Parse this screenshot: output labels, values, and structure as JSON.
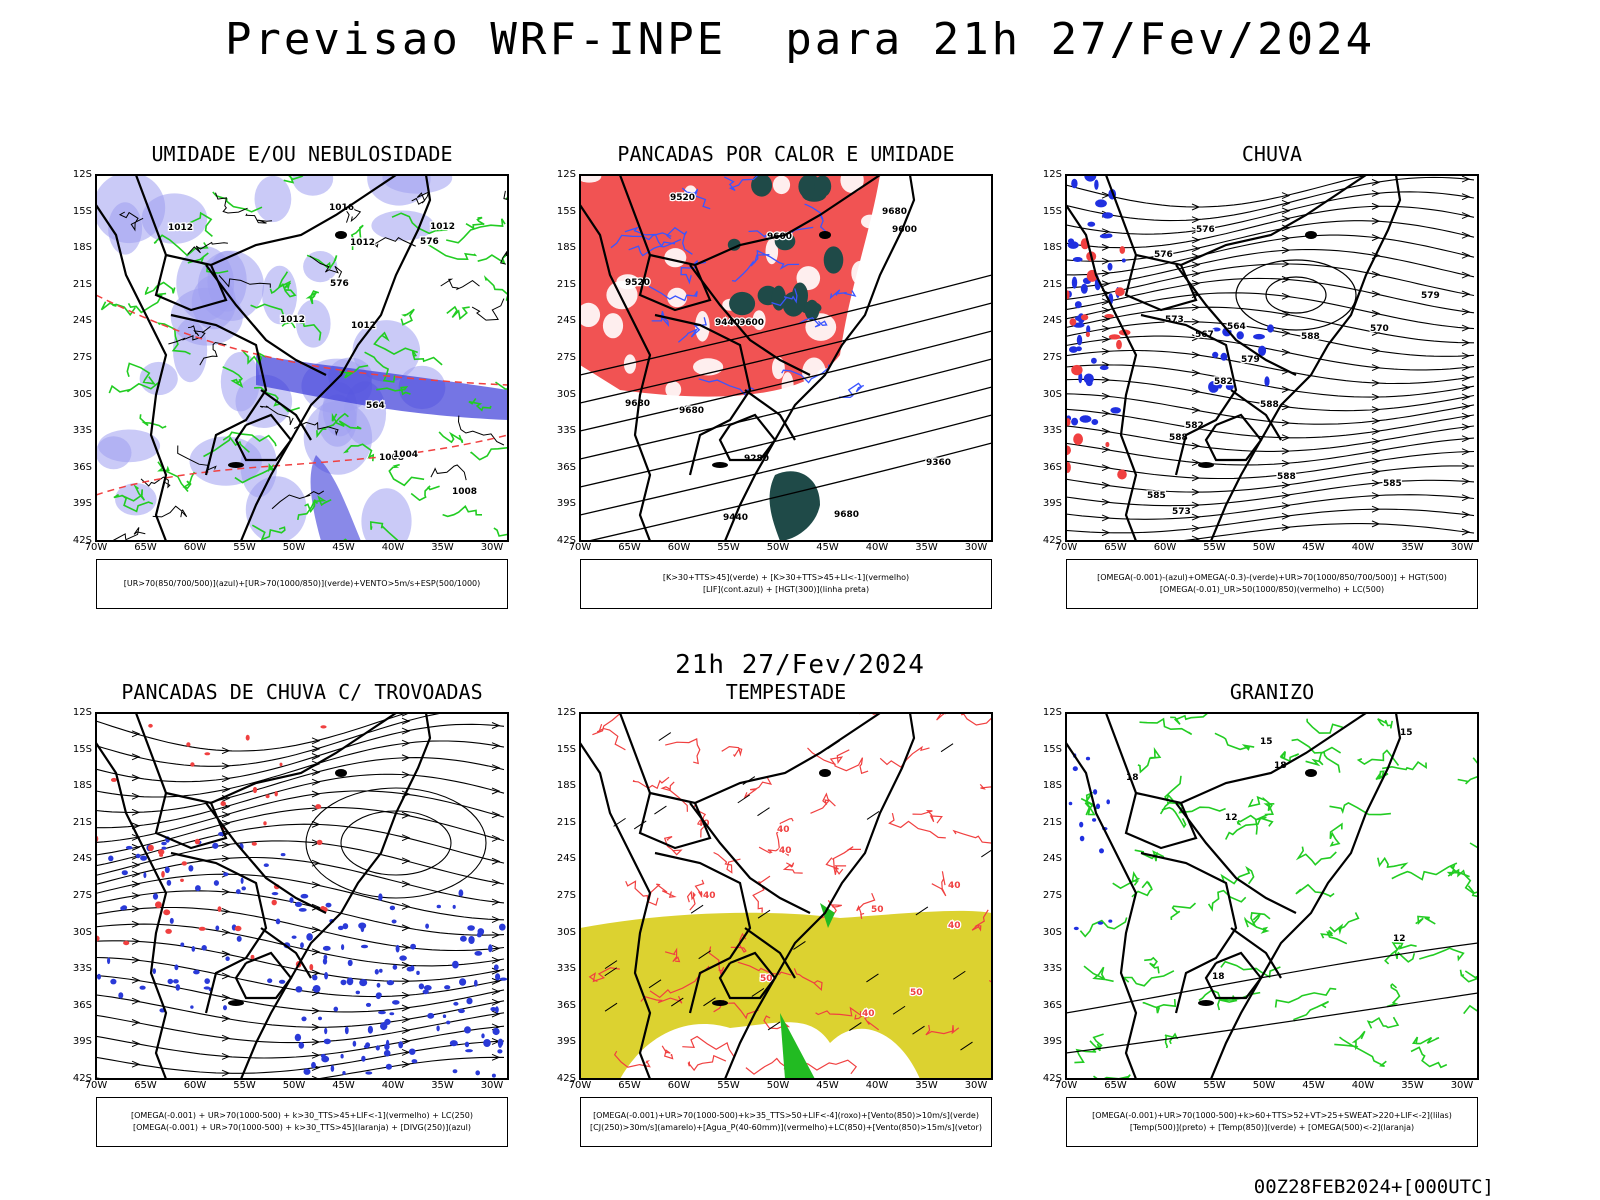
{
  "title": "Previsao WRF-INPE  para 21h 27/Fev/2024",
  "subtitle": "21h 27/Fev/2024",
  "footer": "00Z28FEB2024+[000UTC]",
  "latitude_ticks": [
    "12S",
    "15S",
    "18S",
    "21S",
    "24S",
    "27S",
    "30S",
    "33S",
    "36S",
    "39S",
    "42S"
  ],
  "longitude_ticks": [
    "70W",
    "65W",
    "60W",
    "55W",
    "50W",
    "45W",
    "40W",
    "35W",
    "30W"
  ],
  "colors": {
    "blue_humidity": "#9e9ef0",
    "deep_blue": "#3a3ad8",
    "green_contour": "#22cc22",
    "red": "#f04040",
    "dark_teal": "#1f4a48",
    "yellow": "#dcd230",
    "blue_dots": "#2a3ad8"
  },
  "panels": [
    {
      "title": "UMIDADE E/OU NEBULOSIDADE",
      "legend": [
        "[UR>70(850/700/500)](azul)+[UR>70(1000/850)](verde)+VENTO>5m/s+ESP(500/1000)"
      ],
      "contour_labels": [
        "1012",
        "1012",
        "1012",
        "1008",
        "1012",
        "1016",
        "1012",
        "1008",
        "576",
        "576",
        "564",
        "1004"
      ]
    },
    {
      "title": "PANCADAS POR CALOR E UMIDADE",
      "legend": [
        "[K>30+TTS>45](verde) + [K>30+TTS>45+LI<-1](vermelho)",
        "[LIF](cont.azul) + [HGT(300)](linha preta)"
      ],
      "contour_labels": [
        "9680",
        "9680",
        "9680",
        "9600",
        "9600",
        "9520",
        "9440",
        "9360",
        "9280",
        "9680",
        "9600",
        "9520",
        "9440"
      ]
    },
    {
      "title": "CHUVA",
      "legend": [
        "[OMEGA(-0.001)-(azul)+OMEGA(-0.3)-(verde)+UR>70(1000/850/700/500)] + HGT(500)",
        "[OMEGA(-0.01)_UR>50(1000/850)(vermelho) + LC(500)"
      ],
      "contour_labels": [
        "588",
        "588",
        "588",
        "588",
        "585",
        "582",
        "579",
        "576",
        "573",
        "570",
        "567",
        "564",
        "579",
        "576",
        "573",
        "585",
        "582"
      ]
    },
    {
      "title": "PANCADAS DE CHUVA C/ TROVOADAS",
      "legend": [
        "[OMEGA(-0.001) + UR>70(1000-500) + k>30_TTS>45+LIF<-1](vermelho) + LC(250)",
        "[OMEGA(-0.001) + UR>70(1000-500) + k>30_TTS>45](laranja) + [DIVG(250)](azul)"
      ]
    },
    {
      "title": "TEMPESTADE",
      "legend": [
        "[OMEGA(-0.001)+UR>70(1000-500)+k>35_TTS>50+LIF<-4](roxo)+[Vento(850)>10m/s](verde)",
        "[CJ(250)>30m/s](amarelo)+[Agua_P(40-60mm)](vermelho)+LC(850)+[Vento(850)>15m/s](vetor)"
      ],
      "contour_labels": [
        "40",
        "50",
        "40",
        "40",
        "50",
        "40",
        "40",
        "40",
        "40",
        "50"
      ]
    },
    {
      "title": "GRANIZO",
      "legend": [
        "[OMEGA(-0.001)+UR>70(1000-500)+k>60+TTS>52+VT>25+SWEAT>220+LIF<-2](lilas)",
        "[Temp(500)](preto) + [Temp(850)](verde) + [OMEGA(500)<-2](laranja)"
      ],
      "contour_labels": [
        "18",
        "18",
        "15",
        "12",
        "12",
        "15",
        "18"
      ]
    }
  ]
}
